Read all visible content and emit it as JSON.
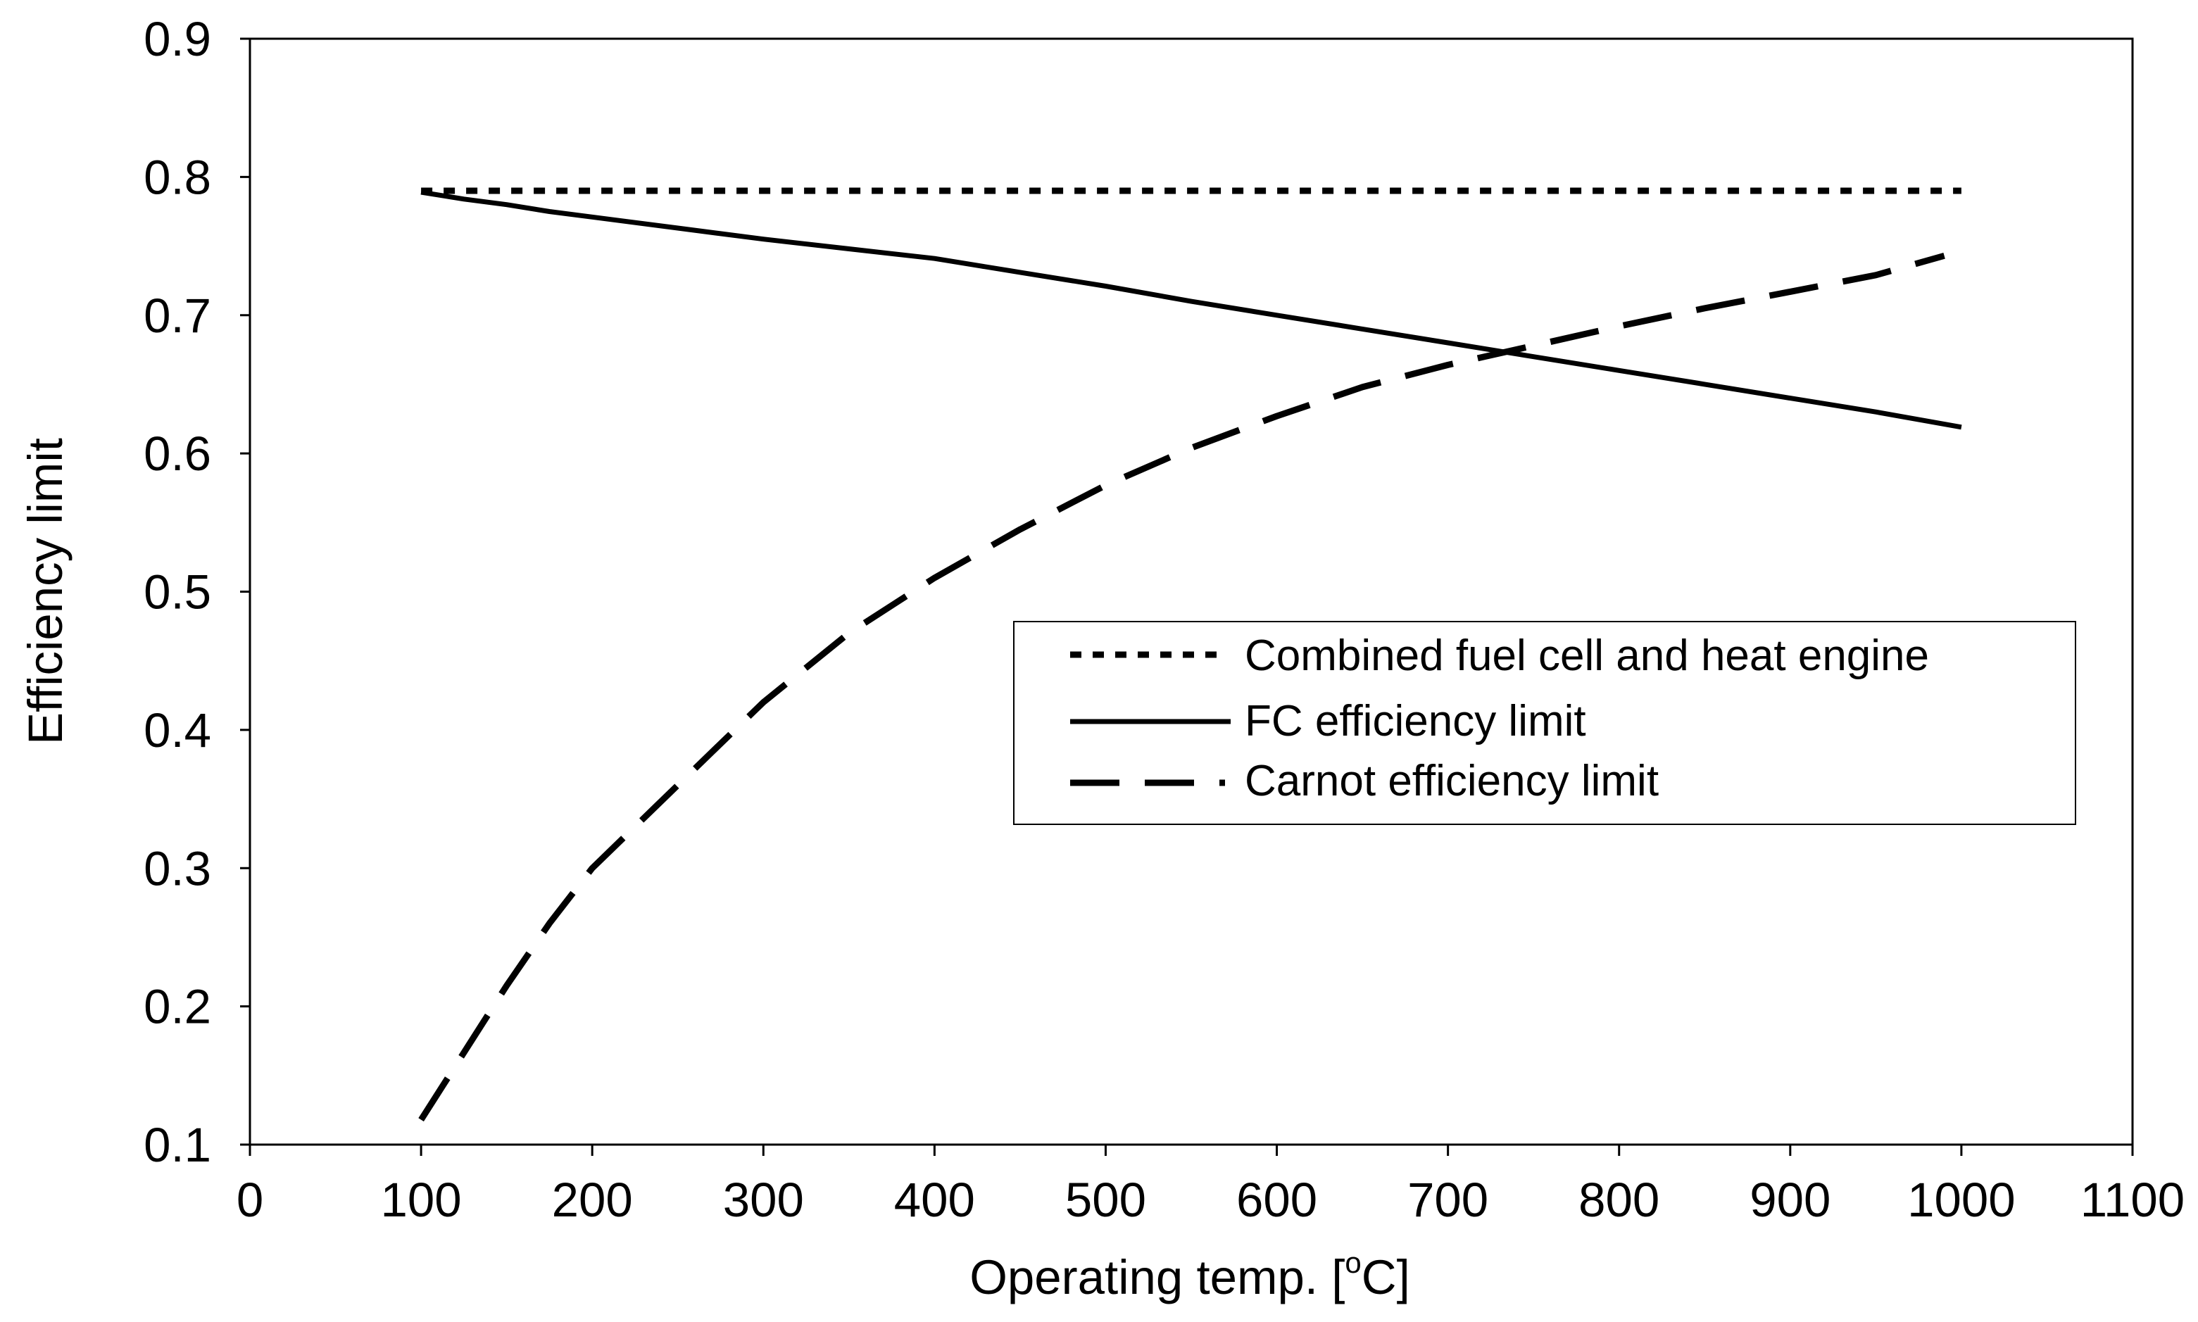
{
  "chart_data": {
    "type": "line",
    "title": "",
    "xlabel": "Operating temp. [",
    "xlabel_sup": "o",
    "xlabel_unit": "C]",
    "ylabel": "Efficiency limit",
    "xlim": [
      0,
      1100
    ],
    "ylim": [
      0.1,
      0.9
    ],
    "xticks": [
      0,
      100,
      200,
      300,
      400,
      500,
      600,
      700,
      800,
      900,
      1000,
      1100
    ],
    "yticks": [
      0.1,
      0.2,
      0.3,
      0.4,
      0.5,
      0.6,
      0.7,
      0.8,
      0.9
    ],
    "xtick_labels": [
      "0",
      "100",
      "200",
      "300",
      "400",
      "500",
      "600",
      "700",
      "800",
      "900",
      "1000",
      "1100"
    ],
    "ytick_labels": [
      "0.1",
      "0.2",
      "0.3",
      "0.4",
      "0.5",
      "0.6",
      "0.7",
      "0.8",
      "0.9"
    ],
    "grid": false,
    "legend_position": "center-right",
    "series": [
      {
        "name": "Combined fuel cell and heat engine",
        "style": "dotted",
        "x": [
          100,
          1000
        ],
        "y": [
          0.79,
          0.79
        ]
      },
      {
        "name": "FC efficiency limit",
        "style": "solid",
        "x": [
          100,
          125,
          150,
          175,
          200,
          250,
          275,
          300,
          350,
          400,
          450,
          500,
          550,
          600,
          650,
          700,
          750,
          800,
          850,
          900,
          950,
          1000
        ],
        "y": [
          0.789,
          0.784,
          0.78,
          0.775,
          0.771,
          0.763,
          0.759,
          0.755,
          0.748,
          0.741,
          0.731,
          0.721,
          0.71,
          0.7,
          0.69,
          0.68,
          0.67,
          0.66,
          0.65,
          0.64,
          0.63,
          0.619
        ]
      },
      {
        "name": "Carnot efficiency limit",
        "style": "dashed",
        "x": [
          100,
          150,
          175,
          200,
          250,
          300,
          350,
          400,
          450,
          500,
          550,
          600,
          650,
          700,
          750,
          800,
          850,
          900,
          950,
          990
        ],
        "y": [
          0.118,
          0.215,
          0.26,
          0.3,
          0.36,
          0.42,
          0.47,
          0.51,
          0.545,
          0.577,
          0.604,
          0.627,
          0.648,
          0.664,
          0.678,
          0.692,
          0.705,
          0.717,
          0.729,
          0.743
        ]
      }
    ]
  }
}
